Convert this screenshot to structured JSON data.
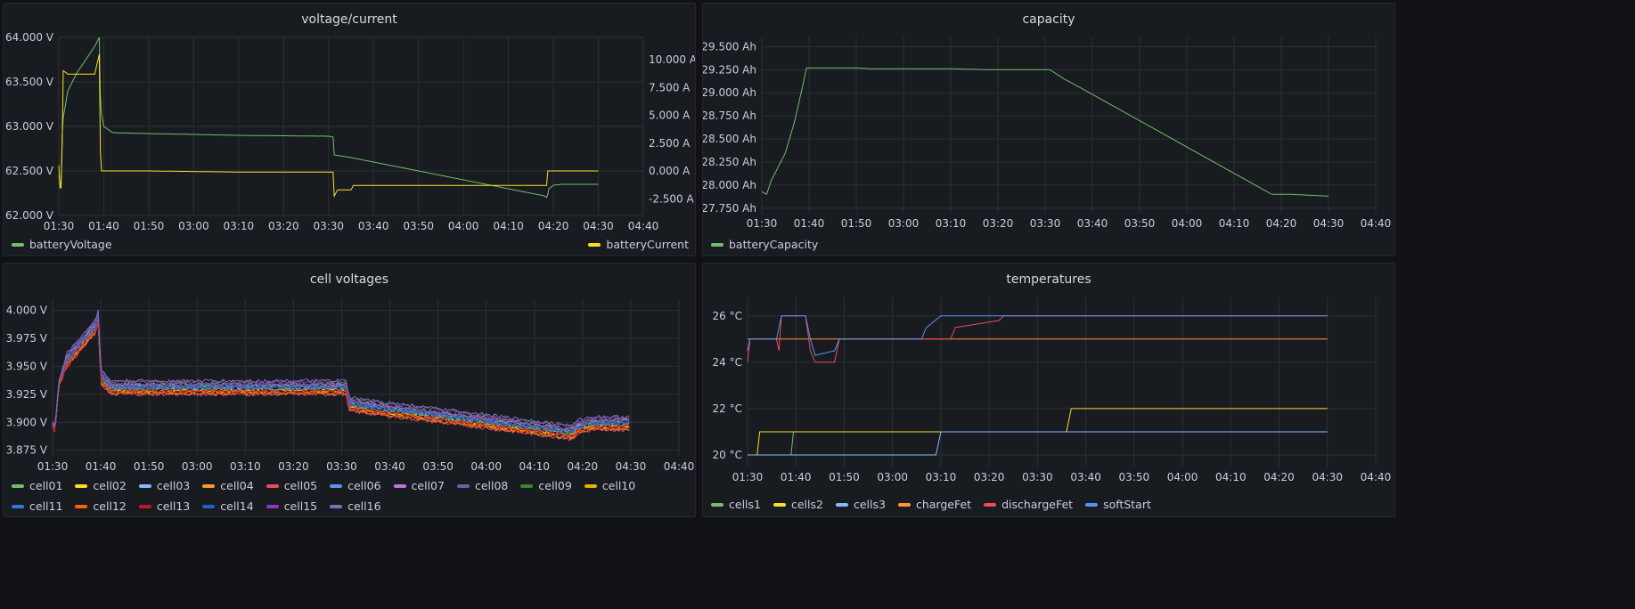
{
  "dashboard": {
    "panels": [
      {
        "id": "p1",
        "title": "voltage/current"
      },
      {
        "id": "p2",
        "title": "capacity"
      },
      {
        "id": "p3",
        "title": "cell voltages"
      },
      {
        "id": "p4",
        "title": "temperatures"
      }
    ]
  },
  "chart_data": [
    {
      "type": "line",
      "title": "voltage/current",
      "x_ticks": [
        "01:30",
        "01:40",
        "01:50",
        "03:00",
        "03:10",
        "03:20",
        "03:30",
        "03:40",
        "03:50",
        "04:00",
        "04:10",
        "04:20",
        "04:30",
        "04:40"
      ],
      "y_left_ticks": [
        "62.000 V",
        "62.500 V",
        "63.000 V",
        "63.500 V",
        "64.000 V"
      ],
      "y_right_ticks": [
        "-2.500 A",
        "0.000 A",
        "2.500 A",
        "5.000 A",
        "7.500 A",
        "10.000 A"
      ],
      "ylim_left": [
        62.0,
        64.0
      ],
      "ylim_right": [
        -4.0,
        12.0
      ],
      "legend_placement": "bottom",
      "series": [
        {
          "name": "batteryVoltage",
          "color": "#73bf69",
          "axis": "left",
          "points": [
            [
              0,
              62.45
            ],
            [
              0.5,
              62.3
            ],
            [
              0.6,
              62.8
            ],
            [
              1,
              63.1
            ],
            [
              2,
              63.4
            ],
            [
              4,
              63.6
            ],
            [
              6,
              63.75
            ],
            [
              8,
              63.9
            ],
            [
              9,
              64.0
            ],
            [
              9.3,
              63.2
            ],
            [
              10,
              63.0
            ],
            [
              12,
              62.93
            ],
            [
              20,
              62.92
            ],
            [
              40,
              62.9
            ],
            [
              60,
              62.89
            ],
            [
              61,
              62.88
            ],
            [
              61.2,
              62.68
            ],
            [
              65,
              62.65
            ],
            [
              68,
              62.62
            ],
            [
              70,
              62.6
            ],
            [
              80,
              62.5
            ],
            [
              90,
              62.4
            ],
            [
              100,
              62.3
            ],
            [
              108,
              62.22
            ],
            [
              108.6,
              62.2
            ],
            [
              109,
              62.3
            ],
            [
              110,
              62.34
            ],
            [
              112,
              62.35
            ],
            [
              120,
              62.35
            ]
          ]
        },
        {
          "name": "batteryCurrent",
          "color": "#fade2a",
          "axis": "right",
          "points": [
            [
              0,
              0.5
            ],
            [
              0.2,
              -1.5
            ],
            [
              0.6,
              -1.4
            ],
            [
              1,
              9
            ],
            [
              2,
              8.7
            ],
            [
              8,
              8.7
            ],
            [
              9,
              10.5
            ],
            [
              9.3,
              0
            ],
            [
              20,
              0
            ],
            [
              40,
              -0.1
            ],
            [
              61,
              -0.1
            ],
            [
              61.2,
              -2.3
            ],
            [
              62,
              -1.7
            ],
            [
              65,
              -1.7
            ],
            [
              65.5,
              -1.3
            ],
            [
              80,
              -1.3
            ],
            [
              100,
              -1.3
            ],
            [
              108.5,
              -1.3
            ],
            [
              108.6,
              -0.2
            ],
            [
              108.7,
              0
            ],
            [
              120,
              0
            ]
          ]
        }
      ]
    },
    {
      "type": "line",
      "title": "capacity",
      "x_ticks": [
        "01:30",
        "01:40",
        "01:50",
        "03:00",
        "03:10",
        "03:20",
        "03:30",
        "03:40",
        "03:50",
        "04:00",
        "04:10",
        "04:20",
        "04:30",
        "04:40"
      ],
      "y_ticks": [
        "27.750 Ah",
        "28.000 Ah",
        "28.250 Ah",
        "28.500 Ah",
        "28.750 Ah",
        "29.000 Ah",
        "29.250 Ah",
        "29.500 Ah"
      ],
      "ylim": [
        27.7,
        29.6
      ],
      "legend_placement": "bottom",
      "series": [
        {
          "name": "batteryCapacity",
          "color": "#73bf69",
          "points": [
            [
              0,
              27.93
            ],
            [
              1,
              27.9
            ],
            [
              2,
              28.05
            ],
            [
              5,
              28.35
            ],
            [
              7,
              28.7
            ],
            [
              9.5,
              29.27
            ],
            [
              20,
              29.27
            ],
            [
              23,
              29.26
            ],
            [
              40,
              29.26
            ],
            [
              48,
              29.25
            ],
            [
              61,
              29.25
            ],
            [
              64,
              29.15
            ],
            [
              68,
              29.04
            ],
            [
              108,
              27.9
            ],
            [
              112,
              27.9
            ],
            [
              120,
              27.88
            ]
          ]
        }
      ]
    },
    {
      "type": "line",
      "title": "cell voltages",
      "x_ticks": [
        "01:30",
        "01:40",
        "01:50",
        "03:00",
        "03:10",
        "03:20",
        "03:30",
        "03:40",
        "03:50",
        "04:00",
        "04:10",
        "04:20",
        "04:30",
        "04:40"
      ],
      "y_ticks": [
        "3.875 V",
        "3.900 V",
        "3.925 V",
        "3.950 V",
        "3.975 V",
        "4.000 V"
      ],
      "ylim": [
        3.87,
        4.01
      ],
      "legend_placement": "bottom",
      "series": [
        {
          "name": "cell01",
          "color": "#73bf69",
          "offset": 0.004
        },
        {
          "name": "cell02",
          "color": "#fade2a",
          "offset": -0.002
        },
        {
          "name": "cell03",
          "color": "#8ab8ff",
          "offset": 0.001
        },
        {
          "name": "cell04",
          "color": "#ff9830",
          "offset": -0.004
        },
        {
          "name": "cell05",
          "color": "#f2495c",
          "offset": -0.005
        },
        {
          "name": "cell06",
          "color": "#5794f2",
          "offset": 0.002
        },
        {
          "name": "cell07",
          "color": "#b877d9",
          "offset": 0.003
        },
        {
          "name": "cell08",
          "color": "#705da0",
          "offset": 0.006
        },
        {
          "name": "cell09",
          "color": "#37872d",
          "offset": 0.001
        },
        {
          "name": "cell10",
          "color": "#e0b400",
          "offset": -0.001
        },
        {
          "name": "cell11",
          "color": "#3274d9",
          "offset": 0.0
        },
        {
          "name": "cell12",
          "color": "#fa6400",
          "offset": -0.003
        },
        {
          "name": "cell13",
          "color": "#c4162a",
          "offset": -0.002
        },
        {
          "name": "cell14",
          "color": "#1f60c4",
          "offset": 0.002
        },
        {
          "name": "cell15",
          "color": "#8f3bb8",
          "offset": 0.004
        },
        {
          "name": "cell16",
          "color": "#806eb7",
          "offset": 0.007
        }
      ],
      "base_points": [
        [
          0,
          3.898
        ],
        [
          0.5,
          3.892
        ],
        [
          1.3,
          3.935
        ],
        [
          3,
          3.955
        ],
        [
          6,
          3.97
        ],
        [
          9,
          3.985
        ],
        [
          9.5,
          3.995
        ],
        [
          10,
          3.94
        ],
        [
          12,
          3.93
        ],
        [
          61,
          3.93
        ],
        [
          61.5,
          3.915
        ],
        [
          108,
          3.89
        ],
        [
          109,
          3.895
        ],
        [
          112,
          3.898
        ],
        [
          120,
          3.898
        ]
      ]
    },
    {
      "type": "line",
      "title": "temperatures",
      "x_ticks": [
        "01:30",
        "01:40",
        "01:50",
        "03:00",
        "03:10",
        "03:20",
        "03:30",
        "03:40",
        "03:50",
        "04:00",
        "04:10",
        "04:20",
        "04:30",
        "04:40"
      ],
      "y_ticks": [
        "20 °C",
        "22 °C",
        "24 °C",
        "26 °C"
      ],
      "ylim": [
        19.5,
        26.8
      ],
      "legend_placement": "bottom",
      "series": [
        {
          "name": "cells1",
          "color": "#73bf69",
          "points": [
            [
              0,
              20
            ],
            [
              9.2,
              20
            ],
            [
              9.3,
              21
            ],
            [
              120,
              21
            ]
          ]
        },
        {
          "name": "cells2",
          "color": "#fade2a",
          "points": [
            [
              0,
              20
            ],
            [
              2.1,
              20
            ],
            [
              2.2,
              21
            ],
            [
              66,
              21
            ],
            [
              66.5,
              21.5
            ],
            [
              67,
              22
            ],
            [
              120,
              22
            ]
          ]
        },
        {
          "name": "cells3",
          "color": "#8ab8ff",
          "points": [
            [
              0,
              20
            ],
            [
              39,
              20
            ],
            [
              39.5,
              20.5
            ],
            [
              40,
              21
            ],
            [
              120,
              21
            ]
          ]
        },
        {
          "name": "chargeFet",
          "color": "#ff9830",
          "points": [
            [
              0,
              25
            ],
            [
              120,
              25
            ]
          ]
        },
        {
          "name": "dischargeFet",
          "color": "#f2495c",
          "points": [
            [
              0,
              24
            ],
            [
              0.5,
              25
            ],
            [
              6,
              25
            ],
            [
              6.5,
              24.5
            ],
            [
              7,
              26
            ],
            [
              12,
              26
            ],
            [
              13,
              24.5
            ],
            [
              14,
              24
            ],
            [
              18,
              24
            ],
            [
              19,
              25
            ],
            [
              42,
              25
            ],
            [
              43,
              25.5
            ],
            [
              52,
              25.8
            ],
            [
              53,
              26
            ],
            [
              120,
              26
            ]
          ]
        },
        {
          "name": "softStart",
          "color": "#5794f2",
          "points": [
            [
              0,
              24.5
            ],
            [
              0.5,
              25
            ],
            [
              6,
              25
            ],
            [
              7,
              26
            ],
            [
              12,
              26
            ],
            [
              13,
              25
            ],
            [
              14,
              24.3
            ],
            [
              18,
              24.5
            ],
            [
              19,
              25
            ],
            [
              36,
              25
            ],
            [
              37,
              25.5
            ],
            [
              40,
              26
            ],
            [
              120,
              26
            ]
          ]
        }
      ]
    }
  ]
}
